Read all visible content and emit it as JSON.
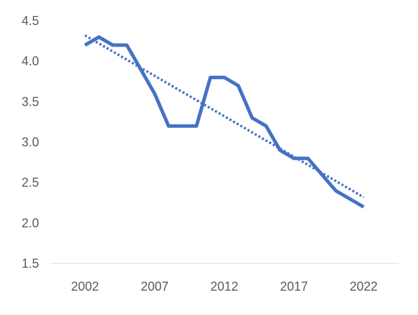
{
  "chart_data": {
    "type": "line",
    "title": "",
    "xlabel": "",
    "ylabel": "",
    "x": [
      2002,
      2003,
      2004,
      2005,
      2006,
      2007,
      2008,
      2009,
      2010,
      2011,
      2012,
      2013,
      2014,
      2015,
      2016,
      2017,
      2018,
      2019,
      2020,
      2021,
      2022
    ],
    "x_ticks": [
      "2002",
      "2007",
      "2012",
      "2017",
      "2022"
    ],
    "y_ticks": [
      "1.5",
      "2.0",
      "2.5",
      "3.0",
      "3.5",
      "4.0",
      "4.5"
    ],
    "ylim": [
      1.5,
      4.5
    ],
    "xlim": [
      2002,
      2022
    ],
    "grid": false,
    "legend": "none",
    "series": [
      {
        "values": [
          4.2,
          4.3,
          4.2,
          4.2,
          3.9,
          3.6,
          3.2,
          3.2,
          3.2,
          3.8,
          3.8,
          3.7,
          3.3,
          3.2,
          2.9,
          2.8,
          2.8,
          2.6,
          2.4,
          2.3,
          2.2
        ],
        "color": "#4472C4",
        "style": "solid"
      },
      {
        "values": [
          4.32,
          2.32
        ],
        "x": [
          2002,
          2022
        ],
        "color": "#4472C4",
        "style": "dotted",
        "kind": "trendline"
      }
    ]
  }
}
